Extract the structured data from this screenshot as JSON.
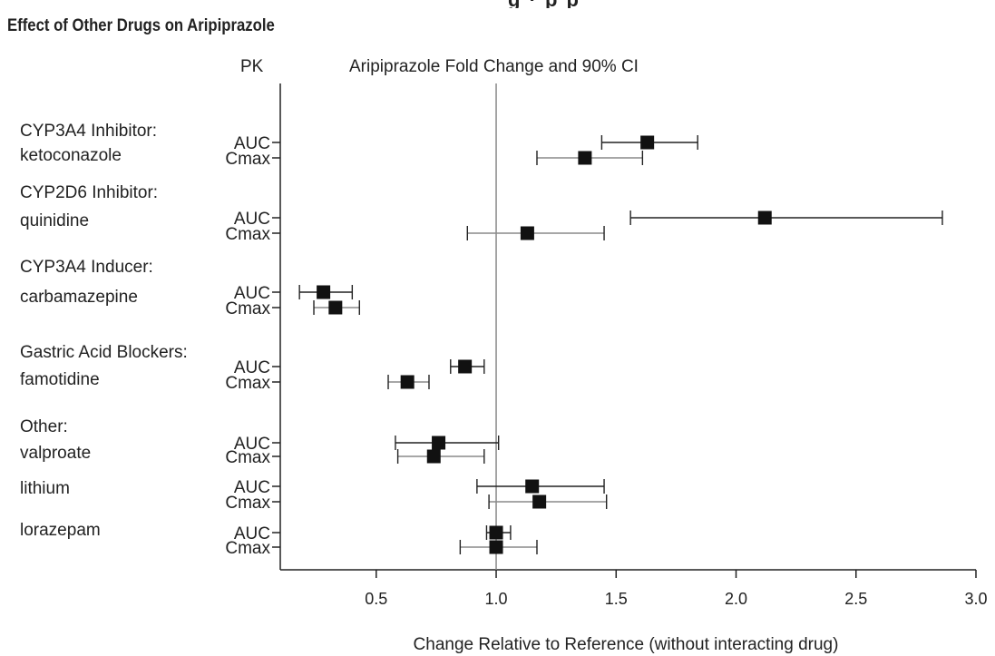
{
  "chart_data": {
    "type": "forest",
    "title": "Effect of Other Drugs on Aripiprazole",
    "column_header_left": "PK",
    "column_header_plot": "Aripiprazole Fold Change and 90% CI",
    "xlabel": "Change Relative to Reference (without interacting drug)",
    "xlim": [
      0.1,
      3.0
    ],
    "xticks": [
      "0.5",
      "1.0",
      "1.5",
      "2.0",
      "2.5",
      "3.0"
    ],
    "reference_line": 1.0,
    "groups": [
      {
        "label_lines": [
          "CYP3A4 Inhibitor:",
          "ketoconazole"
        ],
        "rows": [
          {
            "pk": "AUC",
            "estimate": 1.63,
            "ci": [
              1.44,
              1.84
            ]
          },
          {
            "pk": "Cmax",
            "estimate": 1.37,
            "ci": [
              1.17,
              1.61
            ]
          }
        ]
      },
      {
        "label_lines": [
          "CYP2D6 Inhibitor:",
          "quinidine"
        ],
        "rows": [
          {
            "pk": "AUC",
            "estimate": 2.12,
            "ci": [
              1.56,
              2.86
            ]
          },
          {
            "pk": "Cmax",
            "estimate": 1.13,
            "ci": [
              0.88,
              1.45
            ]
          }
        ]
      },
      {
        "label_lines": [
          "CYP3A4 Inducer:",
          "carbamazepine"
        ],
        "rows": [
          {
            "pk": "AUC",
            "estimate": 0.28,
            "ci": [
              0.18,
              0.4
            ]
          },
          {
            "pk": "Cmax",
            "estimate": 0.33,
            "ci": [
              0.24,
              0.43
            ]
          }
        ]
      },
      {
        "label_lines": [
          "Gastric Acid Blockers:",
          "famotidine"
        ],
        "rows": [
          {
            "pk": "AUC",
            "estimate": 0.87,
            "ci": [
              0.81,
              0.95
            ]
          },
          {
            "pk": "Cmax",
            "estimate": 0.63,
            "ci": [
              0.55,
              0.72
            ]
          }
        ]
      },
      {
        "label_lines": [
          "Other:",
          "valproate"
        ],
        "rows": [
          {
            "pk": "AUC",
            "estimate": 0.76,
            "ci": [
              0.58,
              1.01
            ]
          },
          {
            "pk": "Cmax",
            "estimate": 0.74,
            "ci": [
              0.59,
              0.95
            ]
          }
        ]
      },
      {
        "label_lines": [
          "lithium"
        ],
        "rows": [
          {
            "pk": "AUC",
            "estimate": 1.15,
            "ci": [
              0.92,
              1.45
            ]
          },
          {
            "pk": "Cmax",
            "estimate": 1.18,
            "ci": [
              0.97,
              1.46
            ]
          }
        ]
      },
      {
        "label_lines": [
          "lorazepam"
        ],
        "rows": [
          {
            "pk": "AUC",
            "estimate": 1.0,
            "ci": [
              0.96,
              1.06
            ]
          },
          {
            "pk": "Cmax",
            "estimate": 1.0,
            "ci": [
              0.85,
              1.17
            ]
          }
        ]
      }
    ]
  }
}
